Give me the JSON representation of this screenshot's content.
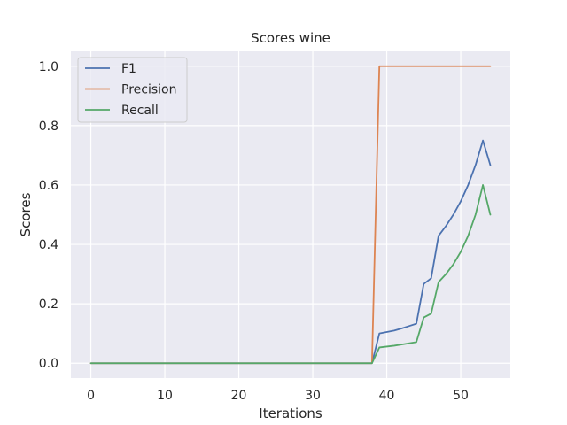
{
  "chart_data": {
    "type": "line",
    "title": "Scores wine",
    "xlabel": "Iterations",
    "ylabel": "Scores",
    "xlim": [
      -2.7,
      56.7
    ],
    "ylim": [
      -0.05,
      1.05
    ],
    "xticks": [
      0,
      10,
      20,
      30,
      40,
      50
    ],
    "yticks": [
      0.0,
      0.2,
      0.4,
      0.6,
      0.8,
      1.0
    ],
    "xtick_labels": [
      "0",
      "10",
      "20",
      "30",
      "40",
      "50"
    ],
    "ytick_labels": [
      "0.0",
      "0.2",
      "0.4",
      "0.6",
      "0.8",
      "1.0"
    ],
    "grid": true,
    "legend_position": "top-left",
    "series": [
      {
        "name": "F1",
        "color": "#4c72b0",
        "x": [
          0,
          1,
          2,
          3,
          4,
          5,
          6,
          7,
          8,
          9,
          10,
          11,
          12,
          13,
          14,
          15,
          16,
          17,
          18,
          19,
          20,
          21,
          22,
          23,
          24,
          25,
          26,
          27,
          28,
          29,
          30,
          31,
          32,
          33,
          34,
          35,
          36,
          37,
          38,
          39,
          40,
          41,
          42,
          43,
          44,
          45,
          46,
          47,
          48,
          49,
          50,
          51,
          52,
          53,
          54
        ],
        "y": [
          0,
          0,
          0,
          0,
          0,
          0,
          0,
          0,
          0,
          0,
          0,
          0,
          0,
          0,
          0,
          0,
          0,
          0,
          0,
          0,
          0,
          0,
          0,
          0,
          0,
          0,
          0,
          0,
          0,
          0,
          0,
          0,
          0,
          0,
          0,
          0,
          0,
          0,
          0,
          0.1,
          0.105,
          0.11,
          0.117,
          0.125,
          0.133,
          0.267,
          0.286,
          0.429,
          0.462,
          0.5,
          0.545,
          0.6,
          0.667,
          0.75,
          0.667
        ]
      },
      {
        "name": "Precision",
        "color": "#dd8452",
        "x": [
          0,
          1,
          2,
          3,
          4,
          5,
          6,
          7,
          8,
          9,
          10,
          11,
          12,
          13,
          14,
          15,
          16,
          17,
          18,
          19,
          20,
          21,
          22,
          23,
          24,
          25,
          26,
          27,
          28,
          29,
          30,
          31,
          32,
          33,
          34,
          35,
          36,
          37,
          38,
          39,
          40,
          41,
          42,
          43,
          44,
          45,
          46,
          47,
          48,
          49,
          50,
          51,
          52,
          53,
          54
        ],
        "y": [
          0,
          0,
          0,
          0,
          0,
          0,
          0,
          0,
          0,
          0,
          0,
          0,
          0,
          0,
          0,
          0,
          0,
          0,
          0,
          0,
          0,
          0,
          0,
          0,
          0,
          0,
          0,
          0,
          0,
          0,
          0,
          0,
          0,
          0,
          0,
          0,
          0,
          0,
          0,
          1,
          1,
          1,
          1,
          1,
          1,
          1,
          1,
          1,
          1,
          1,
          1,
          1,
          1,
          1,
          1
        ]
      },
      {
        "name": "Recall",
        "color": "#55a868",
        "x": [
          0,
          1,
          2,
          3,
          4,
          5,
          6,
          7,
          8,
          9,
          10,
          11,
          12,
          13,
          14,
          15,
          16,
          17,
          18,
          19,
          20,
          21,
          22,
          23,
          24,
          25,
          26,
          27,
          28,
          29,
          30,
          31,
          32,
          33,
          34,
          35,
          36,
          37,
          38,
          39,
          40,
          41,
          42,
          43,
          44,
          45,
          46,
          47,
          48,
          49,
          50,
          51,
          52,
          53,
          54
        ],
        "y": [
          0,
          0,
          0,
          0,
          0,
          0,
          0,
          0,
          0,
          0,
          0,
          0,
          0,
          0,
          0,
          0,
          0,
          0,
          0,
          0,
          0,
          0,
          0,
          0,
          0,
          0,
          0,
          0,
          0,
          0,
          0,
          0,
          0,
          0,
          0,
          0,
          0,
          0,
          0,
          0.053,
          0.056,
          0.059,
          0.063,
          0.067,
          0.071,
          0.154,
          0.167,
          0.273,
          0.3,
          0.333,
          0.375,
          0.429,
          0.5,
          0.6,
          0.5
        ]
      }
    ]
  }
}
